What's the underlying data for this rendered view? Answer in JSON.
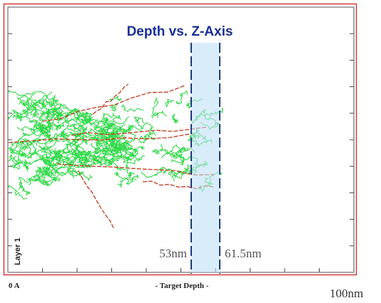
{
  "title": "Depth vs. Z-Axis",
  "y_axis_label": "Layer 1",
  "x_axis_label": "- Target Depth -",
  "x_start_label": "0 A",
  "x_end_label": "100nm",
  "markers": [
    {
      "label": "53nm"
    },
    {
      "label": "61.5nm"
    }
  ]
}
